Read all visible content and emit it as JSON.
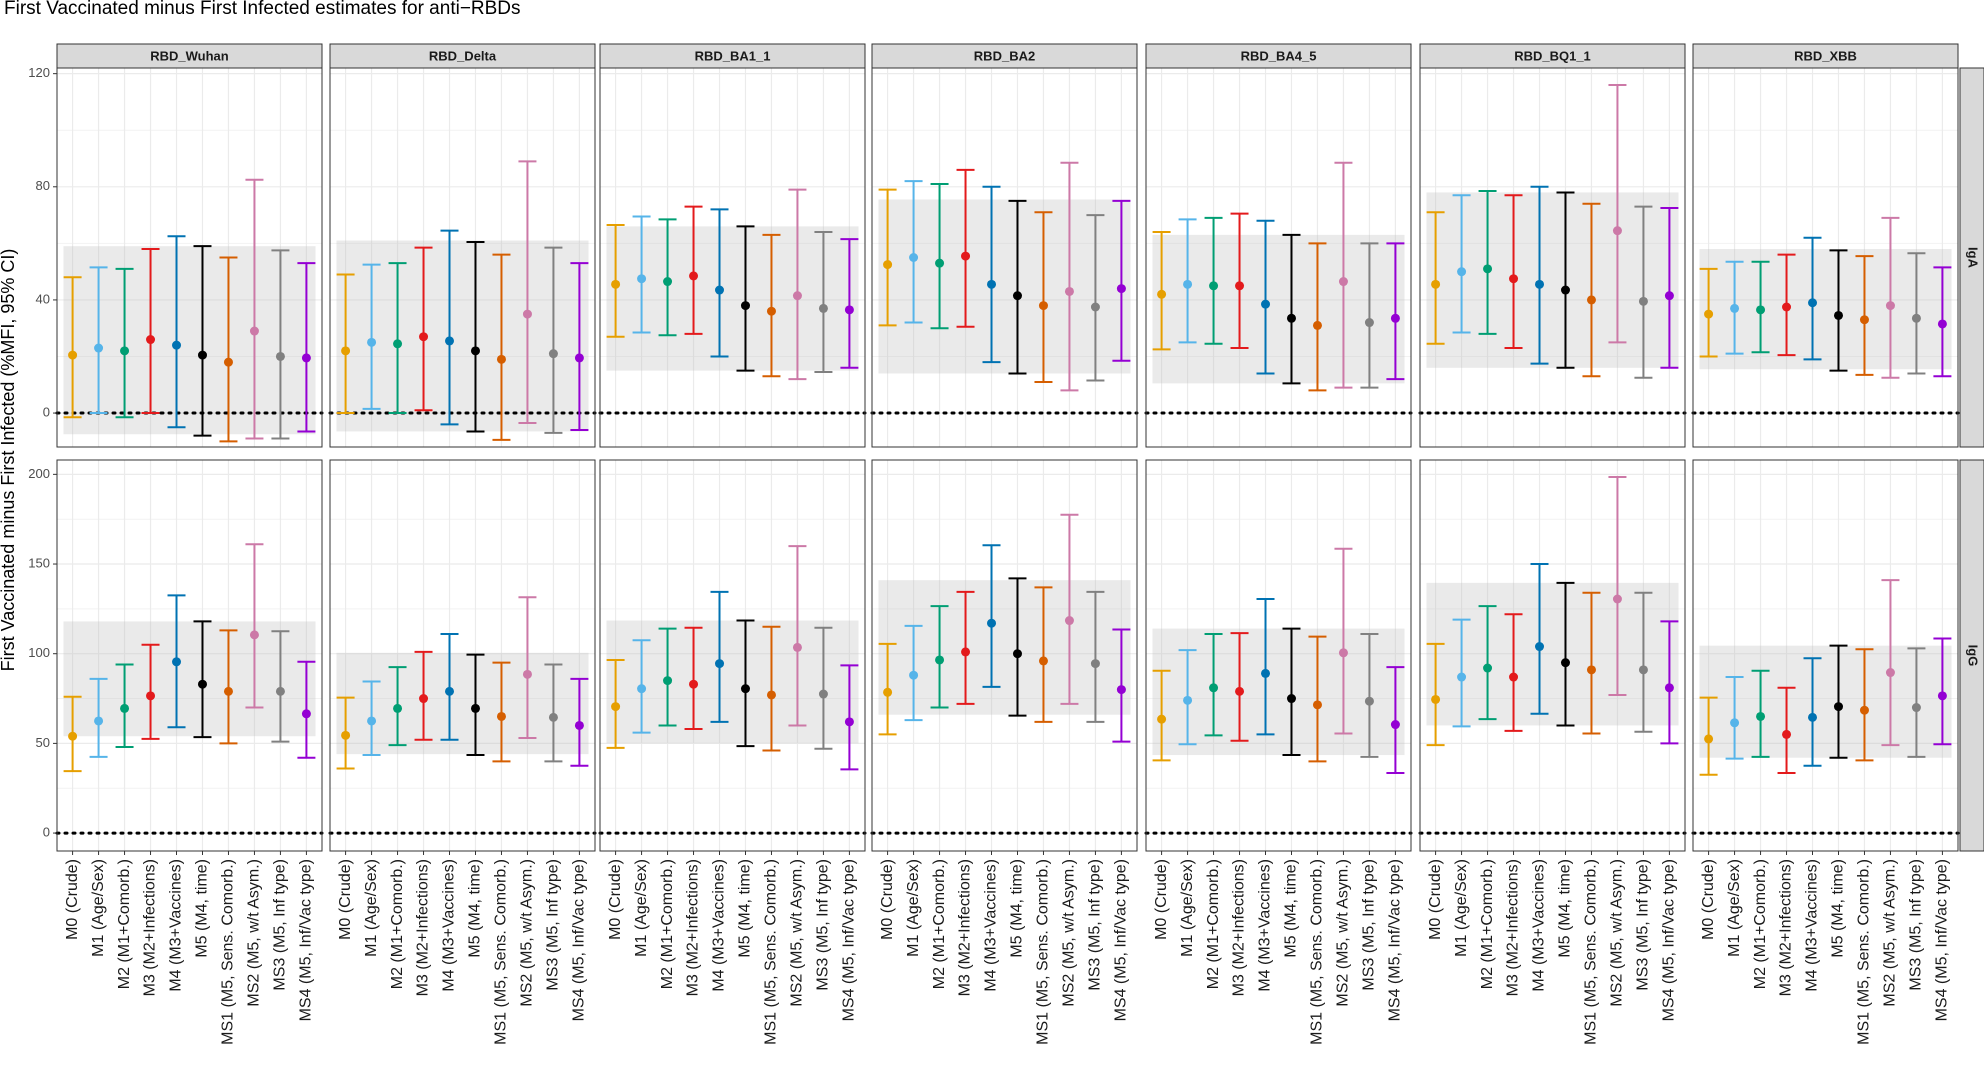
{
  "chart_data": {
    "type": "errorbar",
    "title": "First Vaccinated minus First Infected estimates for anti−RBDs",
    "ylabel": "First Vaccinated minus First Infected (%MFI, 95% CI)",
    "xlabel": "",
    "panels": [
      "RBD_Wuhan",
      "RBD_Delta",
      "RBD_BA1_1",
      "RBD_BA2",
      "RBD_BA4_5",
      "RBD_BQ1_1",
      "RBD_XBB"
    ],
    "rows": [
      {
        "label": "IgA",
        "ylim": [
          -12,
          122
        ],
        "ticks": [
          0,
          40,
          80,
          120
        ],
        "tick_labels": [
          "0",
          "40",
          "80",
          "120"
        ]
      },
      {
        "label": "IgG",
        "ylim": [
          -10,
          208
        ],
        "ticks": [
          0,
          50,
          100,
          150,
          200
        ],
        "tick_labels": [
          "0",
          "50",
          "100",
          "150",
          "200"
        ]
      }
    ],
    "models": [
      "M0 (Crude)",
      "M1 (Age/Sex)",
      "M2 (M1+Comorb.)",
      "M3 (M2+Infections)",
      "M4 (M3+Vaccines)",
      "M5 (M4, time)",
      "MS1 (M5, Sens. Comorb.)",
      "MS2 (M5, w/t Asym.)",
      "MS3 (M5, Inf type)",
      "MS4 (M5, Inf/Vac type)"
    ],
    "colors": [
      "#E69F00",
      "#56B4E9",
      "#009E73",
      "#E31A1C",
      "#0072B2",
      "#000000",
      "#D55E00",
      "#CC79A7",
      "#808080",
      "#9400D3"
    ],
    "reference_line": 0,
    "data": {
      "IgA": {
        "RBD_Wuhan": {
          "est": [
            20.5,
            23,
            22,
            26,
            24,
            20.5,
            18,
            29,
            20,
            19.5
          ],
          "lo": [
            -1.5,
            0,
            -1.5,
            0,
            -5,
            -8,
            -10,
            -9,
            -9,
            -6.5
          ],
          "hi": [
            48,
            51.5,
            51,
            58,
            62.5,
            59,
            55,
            82.5,
            57.5,
            53
          ],
          "band": [
            -7.5,
            59
          ]
        },
        "RBD_Delta": {
          "est": [
            22,
            25,
            24.5,
            27,
            25.5,
            22,
            19,
            35,
            21,
            19.5
          ],
          "lo": [
            0,
            1.5,
            0,
            1,
            -4,
            -6.5,
            -9.5,
            -3.5,
            -7,
            -6
          ],
          "hi": [
            49,
            52.5,
            53,
            58.5,
            64.5,
            60.5,
            56,
            89,
            58.5,
            53
          ],
          "band": [
            -6.5,
            61
          ]
        },
        "RBD_BA1_1": {
          "est": [
            45.5,
            47.5,
            46.5,
            48.5,
            43.5,
            38,
            36,
            41.5,
            37,
            36.5
          ],
          "lo": [
            27,
            28.5,
            27.5,
            28,
            20,
            15,
            13,
            12,
            14.5,
            16
          ],
          "hi": [
            66.5,
            69.5,
            68.5,
            73,
            72,
            66,
            63,
            79,
            64,
            61.5
          ],
          "band": [
            15,
            66
          ]
        },
        "RBD_BA2": {
          "est": [
            52.5,
            55,
            53,
            55.5,
            45.5,
            41.5,
            38,
            43,
            37.5,
            44
          ],
          "lo": [
            31,
            32,
            30,
            30.5,
            18,
            14,
            11,
            8,
            11.5,
            18.5
          ],
          "hi": [
            79,
            82,
            81,
            86,
            80,
            75,
            71,
            88.5,
            70,
            75
          ],
          "band": [
            14,
            75.5
          ]
        },
        "RBD_BA4_5": {
          "est": [
            42,
            45.5,
            45,
            45,
            38.5,
            33.5,
            31,
            46.5,
            32,
            33.5
          ],
          "lo": [
            22.5,
            25,
            24.5,
            23,
            14,
            10.5,
            8,
            9,
            9,
            12
          ],
          "hi": [
            64,
            68.5,
            69,
            70.5,
            68,
            63,
            60,
            88.5,
            60,
            60
          ],
          "band": [
            10.5,
            63
          ]
        },
        "RBD_BQ1_1": {
          "est": [
            45.5,
            50,
            51,
            47.5,
            45.5,
            43.5,
            40,
            64.5,
            39.5,
            41.5
          ],
          "lo": [
            24.5,
            28.5,
            28,
            23,
            17.5,
            16,
            13,
            25,
            12.5,
            16
          ],
          "hi": [
            71,
            77,
            78.5,
            77,
            80,
            78,
            74,
            116,
            73,
            72.5
          ],
          "band": [
            16,
            78
          ]
        },
        "RBD_XBB": {
          "est": [
            35,
            37,
            36.5,
            37.5,
            39,
            34.5,
            33,
            38,
            33.5,
            31.5
          ],
          "lo": [
            20,
            21,
            21.5,
            20.5,
            19,
            15,
            13.5,
            12.5,
            14,
            13
          ],
          "hi": [
            51,
            53.5,
            53.5,
            56,
            62,
            57.5,
            55.5,
            69,
            56.5,
            51.5
          ],
          "band": [
            15.5,
            58
          ]
        }
      },
      "IgG": {
        "RBD_Wuhan": {
          "est": [
            54,
            62.5,
            69.5,
            76.5,
            95.5,
            83,
            79,
            110.5,
            79,
            66.5
          ],
          "lo": [
            34.5,
            42.5,
            48,
            52.5,
            59,
            53.5,
            50,
            70,
            51,
            42
          ],
          "hi": [
            76,
            86,
            94,
            105,
            132.5,
            118,
            113,
            161,
            112.5,
            95.5
          ],
          "band": [
            54,
            118
          ]
        },
        "RBD_Delta": {
          "est": [
            54.5,
            62.5,
            69.5,
            75,
            79,
            69.5,
            65,
            88.5,
            64.5,
            60
          ],
          "lo": [
            36,
            43.5,
            49,
            52,
            52,
            43.5,
            40,
            53,
            40,
            37.5
          ],
          "hi": [
            75.5,
            84.5,
            92.5,
            101,
            111,
            99.5,
            95,
            131.5,
            94,
            86
          ],
          "band": [
            44,
            100.5
          ]
        },
        "RBD_BA1_1": {
          "est": [
            70.5,
            80.5,
            85,
            83,
            94.5,
            80.5,
            77,
            103.5,
            77.5,
            62
          ],
          "lo": [
            47.5,
            56,
            60,
            58,
            62,
            48.5,
            46,
            60,
            47,
            35.5
          ],
          "hi": [
            96.5,
            107.5,
            114,
            114.5,
            134.5,
            118.5,
            115,
            160,
            114.5,
            93.5
          ],
          "band": [
            50,
            118.5
          ]
        },
        "RBD_BA2": {
          "est": [
            78.5,
            88,
            96.5,
            101,
            117,
            100,
            96,
            118.5,
            94.5,
            80
          ],
          "lo": [
            55,
            63,
            70,
            72,
            81.5,
            65.5,
            62,
            72,
            62,
            51
          ],
          "hi": [
            105.5,
            115.5,
            126.5,
            134.5,
            160.5,
            142,
            137,
            177.5,
            134.5,
            113.5
          ],
          "band": [
            66,
            141
          ]
        },
        "RBD_BA4_5": {
          "est": [
            63.5,
            74,
            81,
            79,
            89,
            75,
            71.5,
            100.5,
            73.5,
            60.5
          ],
          "lo": [
            40.5,
            49.5,
            54.5,
            51.5,
            55,
            43.5,
            40,
            55.5,
            42.5,
            33.5
          ],
          "hi": [
            90.5,
            102,
            111,
            111.5,
            130.5,
            114,
            109.5,
            158.5,
            111,
            92.5
          ],
          "band": [
            43.5,
            114
          ]
        },
        "RBD_BQ1_1": {
          "est": [
            74.5,
            87,
            92,
            87,
            104,
            95,
            91,
            130.5,
            91,
            81
          ],
          "lo": [
            49,
            59.5,
            63.5,
            57,
            66.5,
            60,
            55.5,
            77,
            56.5,
            50
          ],
          "hi": [
            105.5,
            119,
            126.5,
            122,
            150,
            139.5,
            134,
            198.5,
            134,
            118
          ],
          "band": [
            60,
            139.5
          ]
        },
        "RBD_XBB": {
          "est": [
            52.5,
            61.5,
            65,
            55,
            64.5,
            70.5,
            68.5,
            89.5,
            70,
            76.5
          ],
          "lo": [
            32.5,
            41.5,
            42.5,
            33.5,
            37.5,
            42,
            40.5,
            49,
            42.5,
            49.5
          ],
          "hi": [
            75.5,
            87,
            90.5,
            81,
            97.5,
            104.5,
            102.5,
            141,
            103,
            108.5
          ],
          "band": [
            42,
            104.5
          ]
        }
      }
    }
  }
}
